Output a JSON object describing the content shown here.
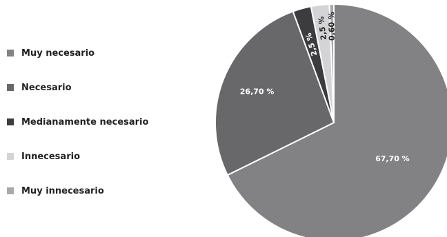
{
  "chart_data": {
    "type": "pie",
    "categories": [
      "Muy necesario",
      "Necesario",
      "Medianamente necesario",
      "Innecesario",
      "Muy innecesario"
    ],
    "values": [
      67.7,
      26.7,
      2.5,
      2.5,
      0.6
    ],
    "data_labels": [
      "67,70 %",
      "26,70 %",
      "2,5 %",
      "2,5 %",
      "0,60 %"
    ],
    "colors": [
      "#828285",
      "#68686b",
      "#3c3c3e",
      "#d4d4d6",
      "#a9a9ab"
    ],
    "legend_placement": "left"
  }
}
